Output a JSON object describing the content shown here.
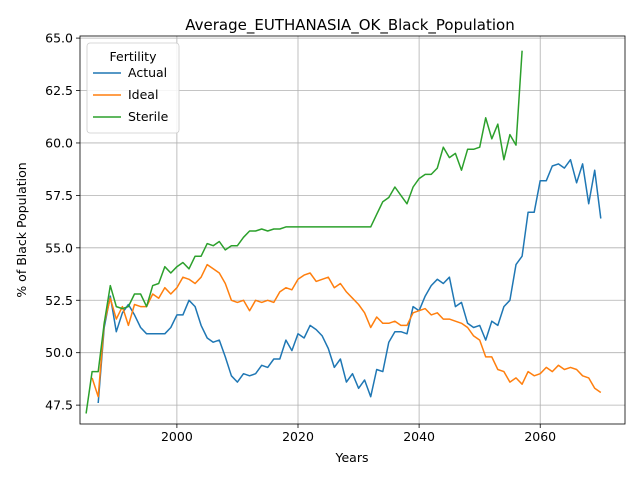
{
  "chart_data": {
    "type": "line",
    "title": "Average_EUTHANASIA_OK_Black_Population",
    "xlabel": "Years",
    "ylabel": "% of Black Population",
    "xlim": [
      1984,
      2074
    ],
    "ylim": [
      46.6,
      65.1
    ],
    "xticks": [
      2000,
      2020,
      2040,
      2060
    ],
    "yticks": [
      47.5,
      50.0,
      52.5,
      55.0,
      57.5,
      60.0,
      62.5,
      65.0
    ],
    "grid": true,
    "legend": {
      "title": "Fertility",
      "position": "upper left"
    },
    "series": [
      {
        "name": "Actual",
        "color": "#1f77b4",
        "x": [
          1987,
          1988,
          1989,
          1990,
          1991,
          1992,
          1993,
          1994,
          1995,
          1996,
          1997,
          1998,
          1999,
          2000,
          2001,
          2002,
          2003,
          2004,
          2005,
          2006,
          2007,
          2008,
          2009,
          2010,
          2011,
          2012,
          2013,
          2014,
          2015,
          2016,
          2017,
          2018,
          2019,
          2020,
          2021,
          2022,
          2023,
          2024,
          2025,
          2026,
          2027,
          2028,
          2029,
          2030,
          2031,
          2032,
          2033,
          2034,
          2035,
          2036,
          2037,
          2038,
          2039,
          2040,
          2041,
          2042,
          2043,
          2044,
          2045,
          2046,
          2047,
          2048,
          2049,
          2050,
          2051,
          2052,
          2053,
          2054,
          2055,
          2056,
          2057,
          2058,
          2059,
          2060,
          2061,
          2062,
          2063,
          2064,
          2065,
          2066,
          2067,
          2068,
          2069,
          2070
        ],
        "values": [
          47.6,
          51.2,
          52.7,
          51.0,
          51.9,
          52.3,
          51.8,
          51.2,
          50.9,
          50.9,
          50.9,
          50.9,
          51.2,
          51.8,
          51.8,
          52.5,
          52.2,
          51.3,
          50.7,
          50.5,
          50.6,
          49.8,
          48.9,
          48.6,
          49.0,
          48.9,
          49.0,
          49.4,
          49.3,
          49.7,
          49.7,
          50.6,
          50.1,
          50.9,
          50.7,
          51.3,
          51.1,
          50.8,
          50.2,
          49.3,
          49.7,
          48.6,
          49.0,
          48.3,
          48.7,
          47.9,
          49.2,
          49.1,
          50.5,
          51.0,
          51.0,
          50.9,
          52.2,
          52.0,
          52.7,
          53.2,
          53.5,
          53.3,
          53.6,
          52.2,
          52.4,
          51.4,
          51.2,
          51.3,
          50.6,
          51.5,
          51.3,
          52.2,
          52.5,
          54.2,
          54.6,
          56.7,
          56.7,
          58.2,
          58.2,
          58.9,
          59.0,
          58.8,
          59.2,
          58.1,
          59.0,
          57.1,
          58.7,
          56.4
        ]
      },
      {
        "name": "Ideal",
        "color": "#ff7f0e",
        "x": [
          1986,
          1987,
          1988,
          1989,
          1990,
          1991,
          1992,
          1993,
          1994,
          1995,
          1996,
          1997,
          1998,
          1999,
          2000,
          2001,
          2002,
          2003,
          2004,
          2005,
          2006,
          2007,
          2008,
          2009,
          2010,
          2011,
          2012,
          2013,
          2014,
          2015,
          2016,
          2017,
          2018,
          2019,
          2020,
          2021,
          2022,
          2023,
          2024,
          2025,
          2026,
          2027,
          2028,
          2029,
          2030,
          2031,
          2032,
          2033,
          2034,
          2035,
          2036,
          2037,
          2038,
          2039,
          2040,
          2041,
          2042,
          2043,
          2044,
          2045,
          2046,
          2047,
          2048,
          2049,
          2050,
          2051,
          2052,
          2053,
          2054,
          2055,
          2056,
          2057,
          2058,
          2059,
          2060,
          2061,
          2062,
          2063,
          2064,
          2065,
          2066,
          2067,
          2068,
          2069,
          2070
        ],
        "values": [
          48.8,
          47.9,
          51.4,
          52.6,
          51.6,
          52.2,
          51.3,
          52.3,
          52.2,
          52.2,
          52.8,
          52.6,
          53.1,
          52.8,
          53.1,
          53.6,
          53.5,
          53.3,
          53.6,
          54.2,
          54.0,
          53.8,
          53.3,
          52.5,
          52.4,
          52.5,
          52.0,
          52.5,
          52.4,
          52.5,
          52.4,
          52.9,
          53.1,
          53.0,
          53.5,
          53.7,
          53.8,
          53.4,
          53.5,
          53.6,
          53.1,
          53.3,
          52.9,
          52.6,
          52.3,
          51.9,
          51.2,
          51.7,
          51.4,
          51.4,
          51.5,
          51.3,
          51.3,
          51.9,
          52.0,
          52.1,
          51.8,
          51.9,
          51.6,
          51.6,
          51.5,
          51.4,
          51.2,
          50.8,
          50.6,
          49.8,
          49.8,
          49.2,
          49.1,
          48.6,
          48.8,
          48.5,
          49.1,
          48.9,
          49.0,
          49.3,
          49.1,
          49.4,
          49.2,
          49.3,
          49.2,
          48.9,
          48.8,
          48.3,
          48.1
        ]
      },
      {
        "name": "Sterile",
        "color": "#2ca02c",
        "x": [
          1985,
          1986,
          1987,
          1988,
          1989,
          1990,
          1991,
          1992,
          1993,
          1994,
          1995,
          1996,
          1997,
          1998,
          1999,
          2000,
          2001,
          2002,
          2003,
          2004,
          2005,
          2006,
          2007,
          2008,
          2009,
          2010,
          2011,
          2012,
          2013,
          2014,
          2015,
          2016,
          2017,
          2018,
          2019,
          2020,
          2021,
          2022,
          2023,
          2024,
          2025,
          2026,
          2027,
          2028,
          2029,
          2030,
          2031,
          2032,
          2033,
          2034,
          2035,
          2036,
          2037,
          2038,
          2039,
          2040,
          2041,
          2042,
          2043,
          2044,
          2045,
          2046,
          2047,
          2048,
          2049,
          2050,
          2051,
          2052,
          2053,
          2054,
          2055,
          2056,
          2057
        ],
        "values": [
          47.1,
          49.1,
          49.1,
          51.4,
          53.2,
          52.2,
          52.1,
          52.2,
          52.8,
          52.8,
          52.2,
          53.2,
          53.3,
          54.1,
          53.8,
          54.1,
          54.3,
          54.0,
          54.6,
          54.6,
          55.2,
          55.1,
          55.3,
          54.9,
          55.1,
          55.1,
          55.5,
          55.8,
          55.8,
          55.9,
          55.8,
          55.9,
          55.9,
          56.0,
          56.0,
          56.0,
          56.0,
          56.0,
          56.0,
          56.0,
          56.0,
          56.0,
          56.0,
          56.0,
          56.0,
          56.0,
          56.0,
          56.0,
          56.6,
          57.2,
          57.4,
          57.9,
          57.5,
          57.1,
          57.9,
          58.3,
          58.5,
          58.5,
          58.8,
          59.8,
          59.3,
          59.5,
          58.7,
          59.7,
          59.7,
          59.8,
          61.2,
          60.2,
          60.9,
          59.2,
          60.4,
          59.9,
          64.4
        ]
      }
    ]
  }
}
